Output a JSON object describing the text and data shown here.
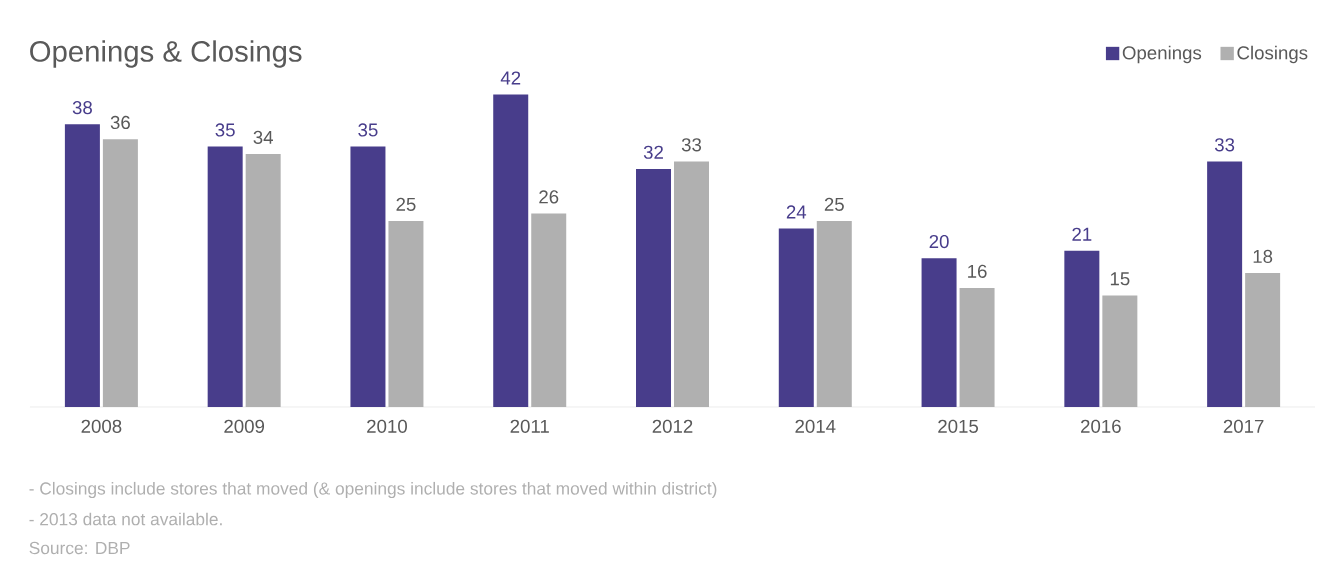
{
  "chart_data": {
    "type": "bar",
    "title": "Openings & Closings",
    "categories": [
      "2008",
      "2009",
      "2010",
      "2011",
      "2012",
      "2014",
      "2015",
      "2016",
      "2017"
    ],
    "series": [
      {
        "name": "Openings",
        "color": "#483d8b",
        "values": [
          38,
          35,
          35,
          42,
          32,
          24,
          20,
          21,
          33
        ]
      },
      {
        "name": "Closings",
        "color": "#b0b0b0",
        "values": [
          36,
          34,
          25,
          26,
          33,
          25,
          16,
          15,
          18
        ]
      }
    ],
    "data_labels": true,
    "legend": "top right",
    "annotations": [
      "- Closings include stores that moved (& openings include stores that moved within district)",
      "- 2013 data not available.",
      "Source: DBP"
    ]
  }
}
